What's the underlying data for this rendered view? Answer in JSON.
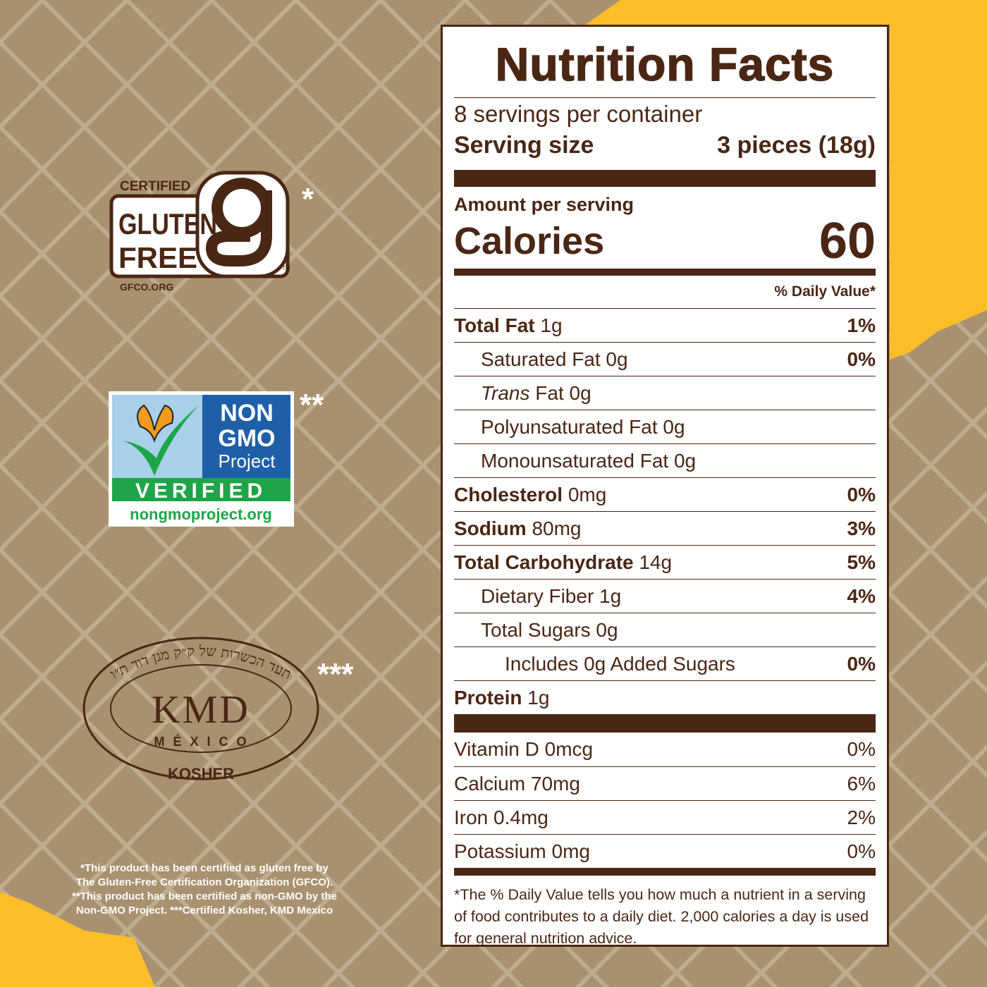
{
  "colors": {
    "brown": "#4a2714",
    "tan": "#a8916f",
    "yellow": "#fbbe29",
    "gmo_blue": "#1f5fa8",
    "gmo_green": "#1ea548"
  },
  "label": {
    "title": "Nutrition Facts",
    "servings": "8 servings per container",
    "serving_size_label": "Serving size",
    "serving_size_value": "3 pieces (18g)",
    "amount_per_serving": "Amount per serving",
    "calories_label": "Calories",
    "calories_value": "60",
    "dv_header": "% Daily Value*",
    "nutrients": [
      {
        "name": "Total Fat",
        "amount": "1g",
        "dv": "1%"
      },
      {
        "name": "Saturated Fat 0g",
        "dv": "0%"
      },
      {
        "name_italic": "Trans",
        "name": "Fat 0g"
      },
      {
        "name": "Polyunsaturated Fat 0g"
      },
      {
        "name": "Monounsaturated Fat 0g"
      },
      {
        "name": "Cholesterol",
        "amount": "0mg",
        "dv": "0%"
      },
      {
        "name": "Sodium",
        "amount": "80mg",
        "dv": "3%"
      },
      {
        "name": "Total Carbohydrate",
        "amount": "14g",
        "dv": "5%"
      },
      {
        "name": "Dietary Fiber 1g",
        "dv": "4%"
      },
      {
        "name": "Total Sugars 0g"
      },
      {
        "name": "Includes 0g Added Sugars",
        "dv": "0%"
      },
      {
        "name": "Protein",
        "amount": "1g"
      }
    ],
    "vitamins": [
      {
        "name": "Vitamin D 0mcg",
        "dv": "0%"
      },
      {
        "name": "Calcium 70mg",
        "dv": "6%"
      },
      {
        "name": "Iron 0.4mg",
        "dv": "2%"
      },
      {
        "name": "Potassium 0mg",
        "dv": "0%"
      }
    ],
    "footnote": "*The % Daily Value tells you how much a nutrient in a serving of food contributes to a daily diet. 2,000 calories a day is used for general nutrition advice."
  },
  "certs": {
    "gluten": {
      "certified": "CERTIFIED",
      "line1": "GLUTEN",
      "line2": "FREE",
      "url": "GFCO.ORG",
      "tm": "TM",
      "star": "*"
    },
    "gmo": {
      "line1": "NON",
      "line2": "GMO",
      "line3": "Project",
      "verified": "VERIFIED",
      "url": "nongmoproject.org",
      "star": "**"
    },
    "kosher": {
      "hebrew": "תעד הכשרות של ק״ק מגן דוד ת״ו",
      "kmd": "KMD",
      "mexico": "MÉXICO",
      "kosher": "KOSHER",
      "star": "***"
    }
  },
  "disclaimer": "*This product has been certified as gluten free by The Gluten-Free Certification Organization (GFCO). **This product has been certified as non-GMO by the Non-GMO Project. ***Certified Kosher, KMD Mexico"
}
